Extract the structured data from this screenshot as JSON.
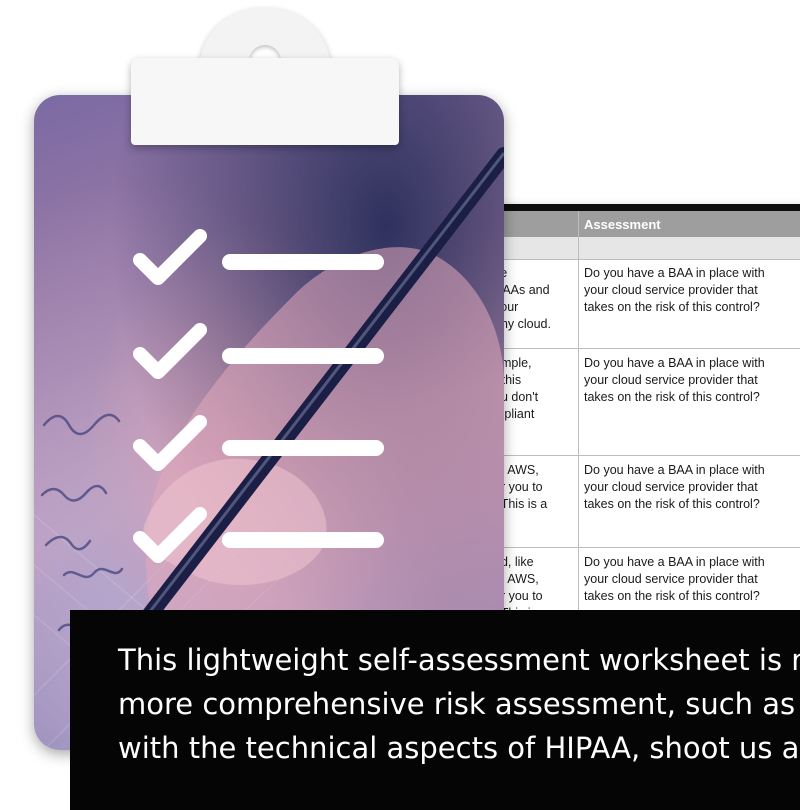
{
  "sheet": {
    "header_label": "Assessment",
    "rows": [
      {
        "left": "ke\nBAAs and\nyour\nany cloud.",
        "right": "Do you have a BAA in place with\nyour cloud service provider that\ntakes on the risk of this control?"
      },
      {
        "left": "ample,\nr this\nou don't\nmpliant",
        "right": "Do you have a BAA in place with\nyour cloud service provider that\ntakes on the risk of this control?"
      },
      {
        "left": "g. AWS,\nor you to\n. This is a",
        "right": "Do you have a BAA in place with\nyour cloud service provider that\ntakes on the risk of this control?"
      },
      {
        "left": "ed, like\ng. AWS,\nor you to\n. This is a",
        "right": "Do you have a BAA in place with\nyour cloud service provider that\ntakes on the risk of this control?"
      }
    ]
  },
  "clipboard": {
    "icon": "checklist-clipboard-icon",
    "checks": 4
  },
  "caption": {
    "line1": "This lightweight self-assessment worksheet is m",
    "line2": "more comprehensive risk assessment, such as th",
    "line3": "with the technical aspects of HIPAA, shoot us an"
  },
  "colors": {
    "sheet_header": "#9e9e9e",
    "caption_bg": "#050505",
    "caption_text": "#ffffff"
  }
}
